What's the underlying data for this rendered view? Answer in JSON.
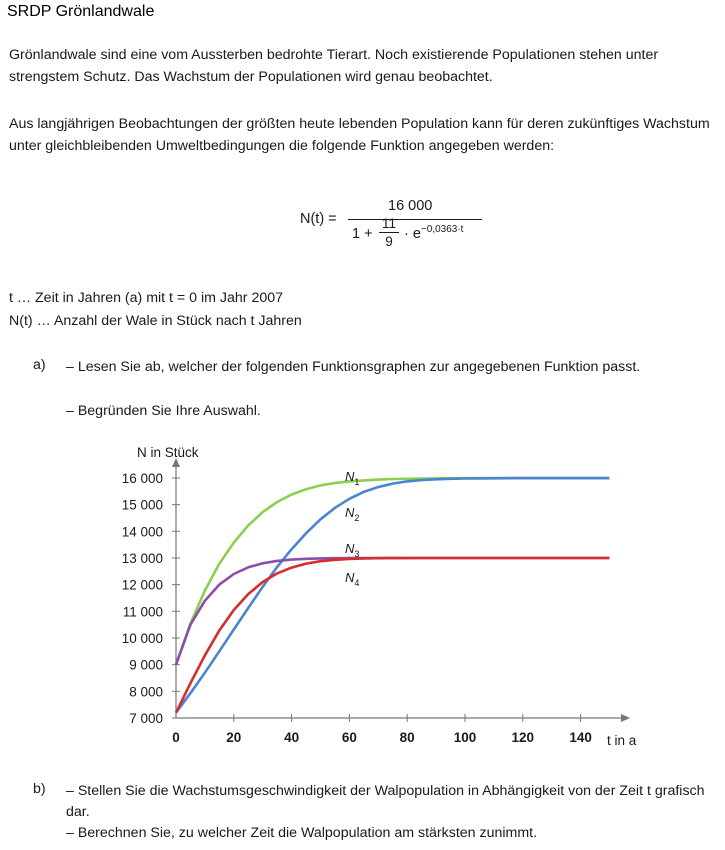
{
  "header": {
    "title": "SRDP Grönlandwale"
  },
  "intro": {
    "paragraph1": "Grönlandwale sind eine vom Aussterben bedrohte Tierart. Noch existierende Populationen stehen unter strengstem Schutz. Das Wachstum der Populationen wird genau beobachtet.",
    "paragraph2": "Aus langjährigen Beobachtungen der größten heute lebenden Population kann für deren zukünftiges Wachstum unter gleichbleibenden Umweltbedingungen die folgende Funktion angegeben werden:"
  },
  "formula": {
    "lhs": "N(t) =",
    "numerator": "16 000",
    "denominator_start": "1 +",
    "small_num": "11",
    "small_den": "9",
    "denominator_rest": "· e",
    "exponent": "−0,0363·t"
  },
  "definitions": {
    "t": "t … Zeit in Jahren (a) mit t = 0 im Jahr 2007",
    "N": "N(t) … Anzahl der Wale in Stück nach t Jahren"
  },
  "task_a": {
    "letter": "a)",
    "line1": "– Lesen Sie ab, welcher der folgenden Funktionsgraphen zur angegebenen Funktion passt.",
    "line2": "– Begründen Sie Ihre Auswahl."
  },
  "task_b": {
    "letter": "b)",
    "line1": "– Stellen Sie die Wachstumsgeschwindigkeit der Walpopulation in Abhängigkeit von der Zeit t grafisch dar.",
    "line2": "– Berechnen Sie, zu welcher Zeit die Walpopulation am stärksten zunimmt."
  },
  "chart_data": {
    "type": "line",
    "ylabel": "N in Stück",
    "xlabel": "t in a",
    "xlim": [
      0,
      157
    ],
    "ylim": [
      7000,
      16500
    ],
    "x_ticks": [
      0,
      20,
      40,
      60,
      80,
      100,
      120,
      140
    ],
    "y_ticks": [
      7000,
      8000,
      9000,
      10000,
      11000,
      12000,
      13000,
      14000,
      15000,
      16000
    ],
    "y_tick_labels": [
      "7 000",
      "8 000",
      "9 000",
      "10 000",
      "11 000",
      "12 000",
      "13 000",
      "14 000",
      "15 000",
      "16 000"
    ],
    "grid": false,
    "x": [
      0,
      5,
      10,
      15,
      20,
      25,
      30,
      35,
      40,
      45,
      50,
      55,
      60,
      65,
      70,
      75,
      80,
      85,
      90,
      95,
      100,
      105,
      110,
      115,
      120,
      125,
      130,
      135,
      140,
      145,
      150
    ],
    "series": [
      {
        "name": "N1",
        "color": "#8ccf4d",
        "values": [
          9000,
          10540,
          11780,
          12780,
          13580,
          14220,
          14720,
          15100,
          15380,
          15580,
          15720,
          15810,
          15870,
          15910,
          15940,
          15960,
          15970,
          15980,
          15985,
          15990,
          15993,
          15995,
          15997,
          15998,
          15999,
          16000,
          16000,
          16000,
          16000,
          16000,
          16000
        ]
      },
      {
        "name": "N2",
        "color": "#4b84cf",
        "values": [
          7200,
          7930,
          8700,
          9500,
          10320,
          11130,
          11920,
          12660,
          13330,
          13930,
          14450,
          14880,
          15220,
          15480,
          15660,
          15790,
          15870,
          15920,
          15950,
          15970,
          15980,
          15985,
          15988,
          15990,
          15991,
          15992,
          15992,
          15993,
          15993,
          15993,
          15993
        ]
      },
      {
        "name": "N3",
        "color": "#8a4fa8",
        "values": [
          9000,
          10500,
          11400,
          12000,
          12400,
          12650,
          12800,
          12890,
          12940,
          12970,
          12985,
          12992,
          12996,
          12998,
          12999,
          13000,
          13000,
          13000,
          13000,
          13000,
          13000,
          13000,
          13000,
          13000,
          13000,
          13000,
          13000,
          13000,
          13000,
          13000,
          13000
        ]
      },
      {
        "name": "N4",
        "color": "#d62d2d",
        "values": [
          7200,
          8300,
          9350,
          10280,
          11050,
          11650,
          12100,
          12420,
          12640,
          12790,
          12880,
          12930,
          12960,
          12980,
          12990,
          12995,
          12997,
          12998,
          12999,
          13000,
          13000,
          13000,
          13000,
          13000,
          13000,
          13000,
          13000,
          13000,
          13000,
          13000,
          13000
        ]
      }
    ],
    "annotations": [
      "N1",
      "N2",
      "N3",
      "N4"
    ]
  }
}
